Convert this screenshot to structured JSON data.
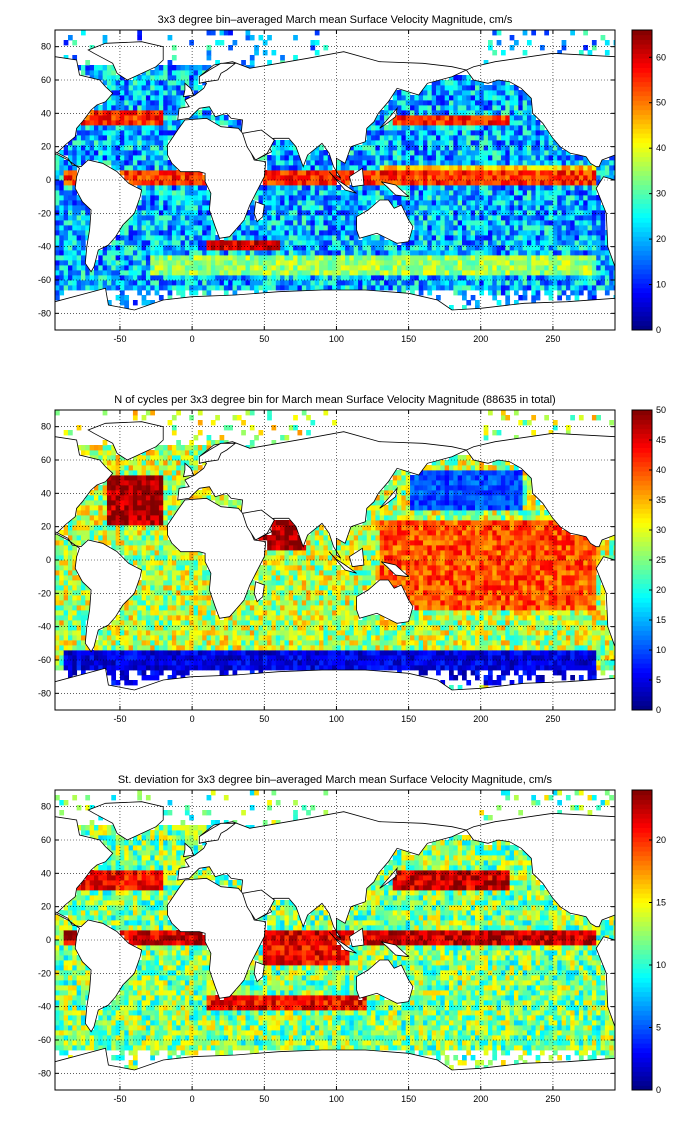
{
  "chart_data": [
    {
      "type": "heatmap",
      "title": "3x3 degree bin–averaged March mean Surface Velocity Magnitude, cm/s",
      "xlim": [
        -95,
        293
      ],
      "ylim": [
        -90,
        90
      ],
      "xticks": [
        -50,
        0,
        50,
        100,
        150,
        200,
        250
      ],
      "yticks": [
        -80,
        -60,
        -40,
        -20,
        0,
        20,
        40,
        60,
        80
      ],
      "grid": true,
      "bin_size_deg": 3,
      "colorbar": {
        "range": [
          0,
          66
        ],
        "ticks": [
          0,
          10,
          20,
          30,
          40,
          50,
          60
        ],
        "colormap": "jet"
      },
      "features": {
        "background_level": 20,
        "high_bands": [
          {
            "lon": [
              -90,
              280
            ],
            "lat": [
              -4,
              5
            ],
            "value": 55
          },
          {
            "lon": [
              130,
              280
            ],
            "lat": [
              7,
              10
            ],
            "value": 45
          },
          {
            "lon": [
              -80,
              -20
            ],
            "lat": [
              33,
              42
            ],
            "value": 55
          },
          {
            "lon": [
              140,
              220
            ],
            "lat": [
              33,
              40
            ],
            "value": 55
          },
          {
            "lon": [
              -30,
              280
            ],
            "lat": [
              -58,
              -45
            ],
            "value": 35
          },
          {
            "lon": [
              10,
              60
            ],
            "lat": [
              -42,
              -36
            ],
            "value": 60
          }
        ]
      }
    },
    {
      "type": "heatmap",
      "title": "N of cycles per 3x3 degree bin for March mean Surface Velocity Magnitude (88635 in total)",
      "xlim": [
        -95,
        293
      ],
      "ylim": [
        -90,
        90
      ],
      "xticks": [
        -50,
        0,
        50,
        100,
        150,
        200,
        250
      ],
      "yticks": [
        -80,
        -60,
        -40,
        -20,
        0,
        20,
        40,
        60,
        80
      ],
      "grid": true,
      "bin_size_deg": 3,
      "colorbar": {
        "range": [
          0,
          50
        ],
        "ticks": [
          0,
          5,
          10,
          15,
          20,
          25,
          30,
          35,
          40,
          45,
          50
        ],
        "colormap": "jet"
      },
      "features": {
        "background_level": 28,
        "high_bands": [
          {
            "lon": [
              -60,
              -20
            ],
            "lat": [
              20,
              50
            ],
            "value": 48
          },
          {
            "lon": [
              45,
              80
            ],
            "lat": [
              5,
              25
            ],
            "value": 48
          },
          {
            "lon": [
              130,
              280
            ],
            "lat": [
              -30,
              25
            ],
            "value": 40
          }
        ],
        "low_bands": [
          {
            "lon": [
              -90,
              280
            ],
            "lat": [
              -75,
              -55
            ],
            "value": 5
          },
          {
            "lon": [
              150,
              230
            ],
            "lat": [
              30,
              55
            ],
            "value": 10
          }
        ]
      }
    },
    {
      "type": "heatmap",
      "title": "St. deviation for 3x3 degree bin–averaged March mean Surface Velocity Magnitude, cm/s",
      "xlim": [
        -95,
        293
      ],
      "ylim": [
        -90,
        90
      ],
      "xticks": [
        -50,
        0,
        50,
        100,
        150,
        200,
        250
      ],
      "yticks": [
        -80,
        -60,
        -40,
        -20,
        0,
        20,
        40,
        60,
        80
      ],
      "grid": true,
      "bin_size_deg": 3,
      "colorbar": {
        "range": [
          0,
          24
        ],
        "ticks": [
          0,
          5,
          10,
          15,
          20
        ],
        "colormap": "jet"
      },
      "features": {
        "background_level": 12,
        "high_bands": [
          {
            "lon": [
              -90,
              280
            ],
            "lat": [
              -4,
              5
            ],
            "value": 22
          },
          {
            "lon": [
              -80,
              -20
            ],
            "lat": [
              30,
              42
            ],
            "value": 21
          },
          {
            "lon": [
              140,
              220
            ],
            "lat": [
              30,
              42
            ],
            "value": 22
          },
          {
            "lon": [
              10,
              120
            ],
            "lat": [
              -42,
              -34
            ],
            "value": 21
          },
          {
            "lon": [
              50,
              110
            ],
            "lat": [
              -15,
              0
            ],
            "value": 21
          }
        ]
      }
    }
  ]
}
